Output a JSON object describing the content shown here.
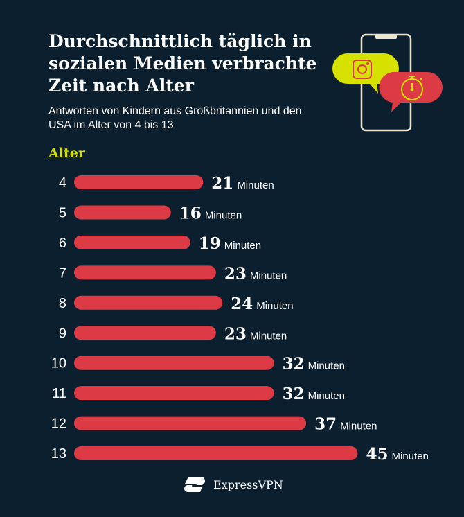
{
  "header": {
    "title": "Durchschnittlich täglich in sozialen Medien verbrachte Zeit nach Alter",
    "subtitle": "Antworten von Kindern aus Großbritannien und den USA im Alter von 4 bis 13"
  },
  "brand": {
    "name": "ExpressVPN"
  },
  "icons": [
    "phone-icon",
    "instagram-icon",
    "stopwatch-icon",
    "expressvpn-logo-icon"
  ],
  "colors": {
    "background": "#0c1f2f",
    "bar": "#dc3a45",
    "accent": "#d6e100"
  },
  "chart_data": {
    "type": "bar",
    "orientation": "horizontal",
    "title": "Durchschnittlich täglich in sozialen Medien verbrachte Zeit nach Alter",
    "ylabel": "Alter",
    "unit": "Minuten",
    "categories": [
      "4",
      "5",
      "6",
      "7",
      "8",
      "9",
      "10",
      "11",
      "12",
      "13"
    ],
    "values": [
      21,
      16,
      19,
      23,
      24,
      23,
      32,
      32,
      37,
      45
    ]
  }
}
